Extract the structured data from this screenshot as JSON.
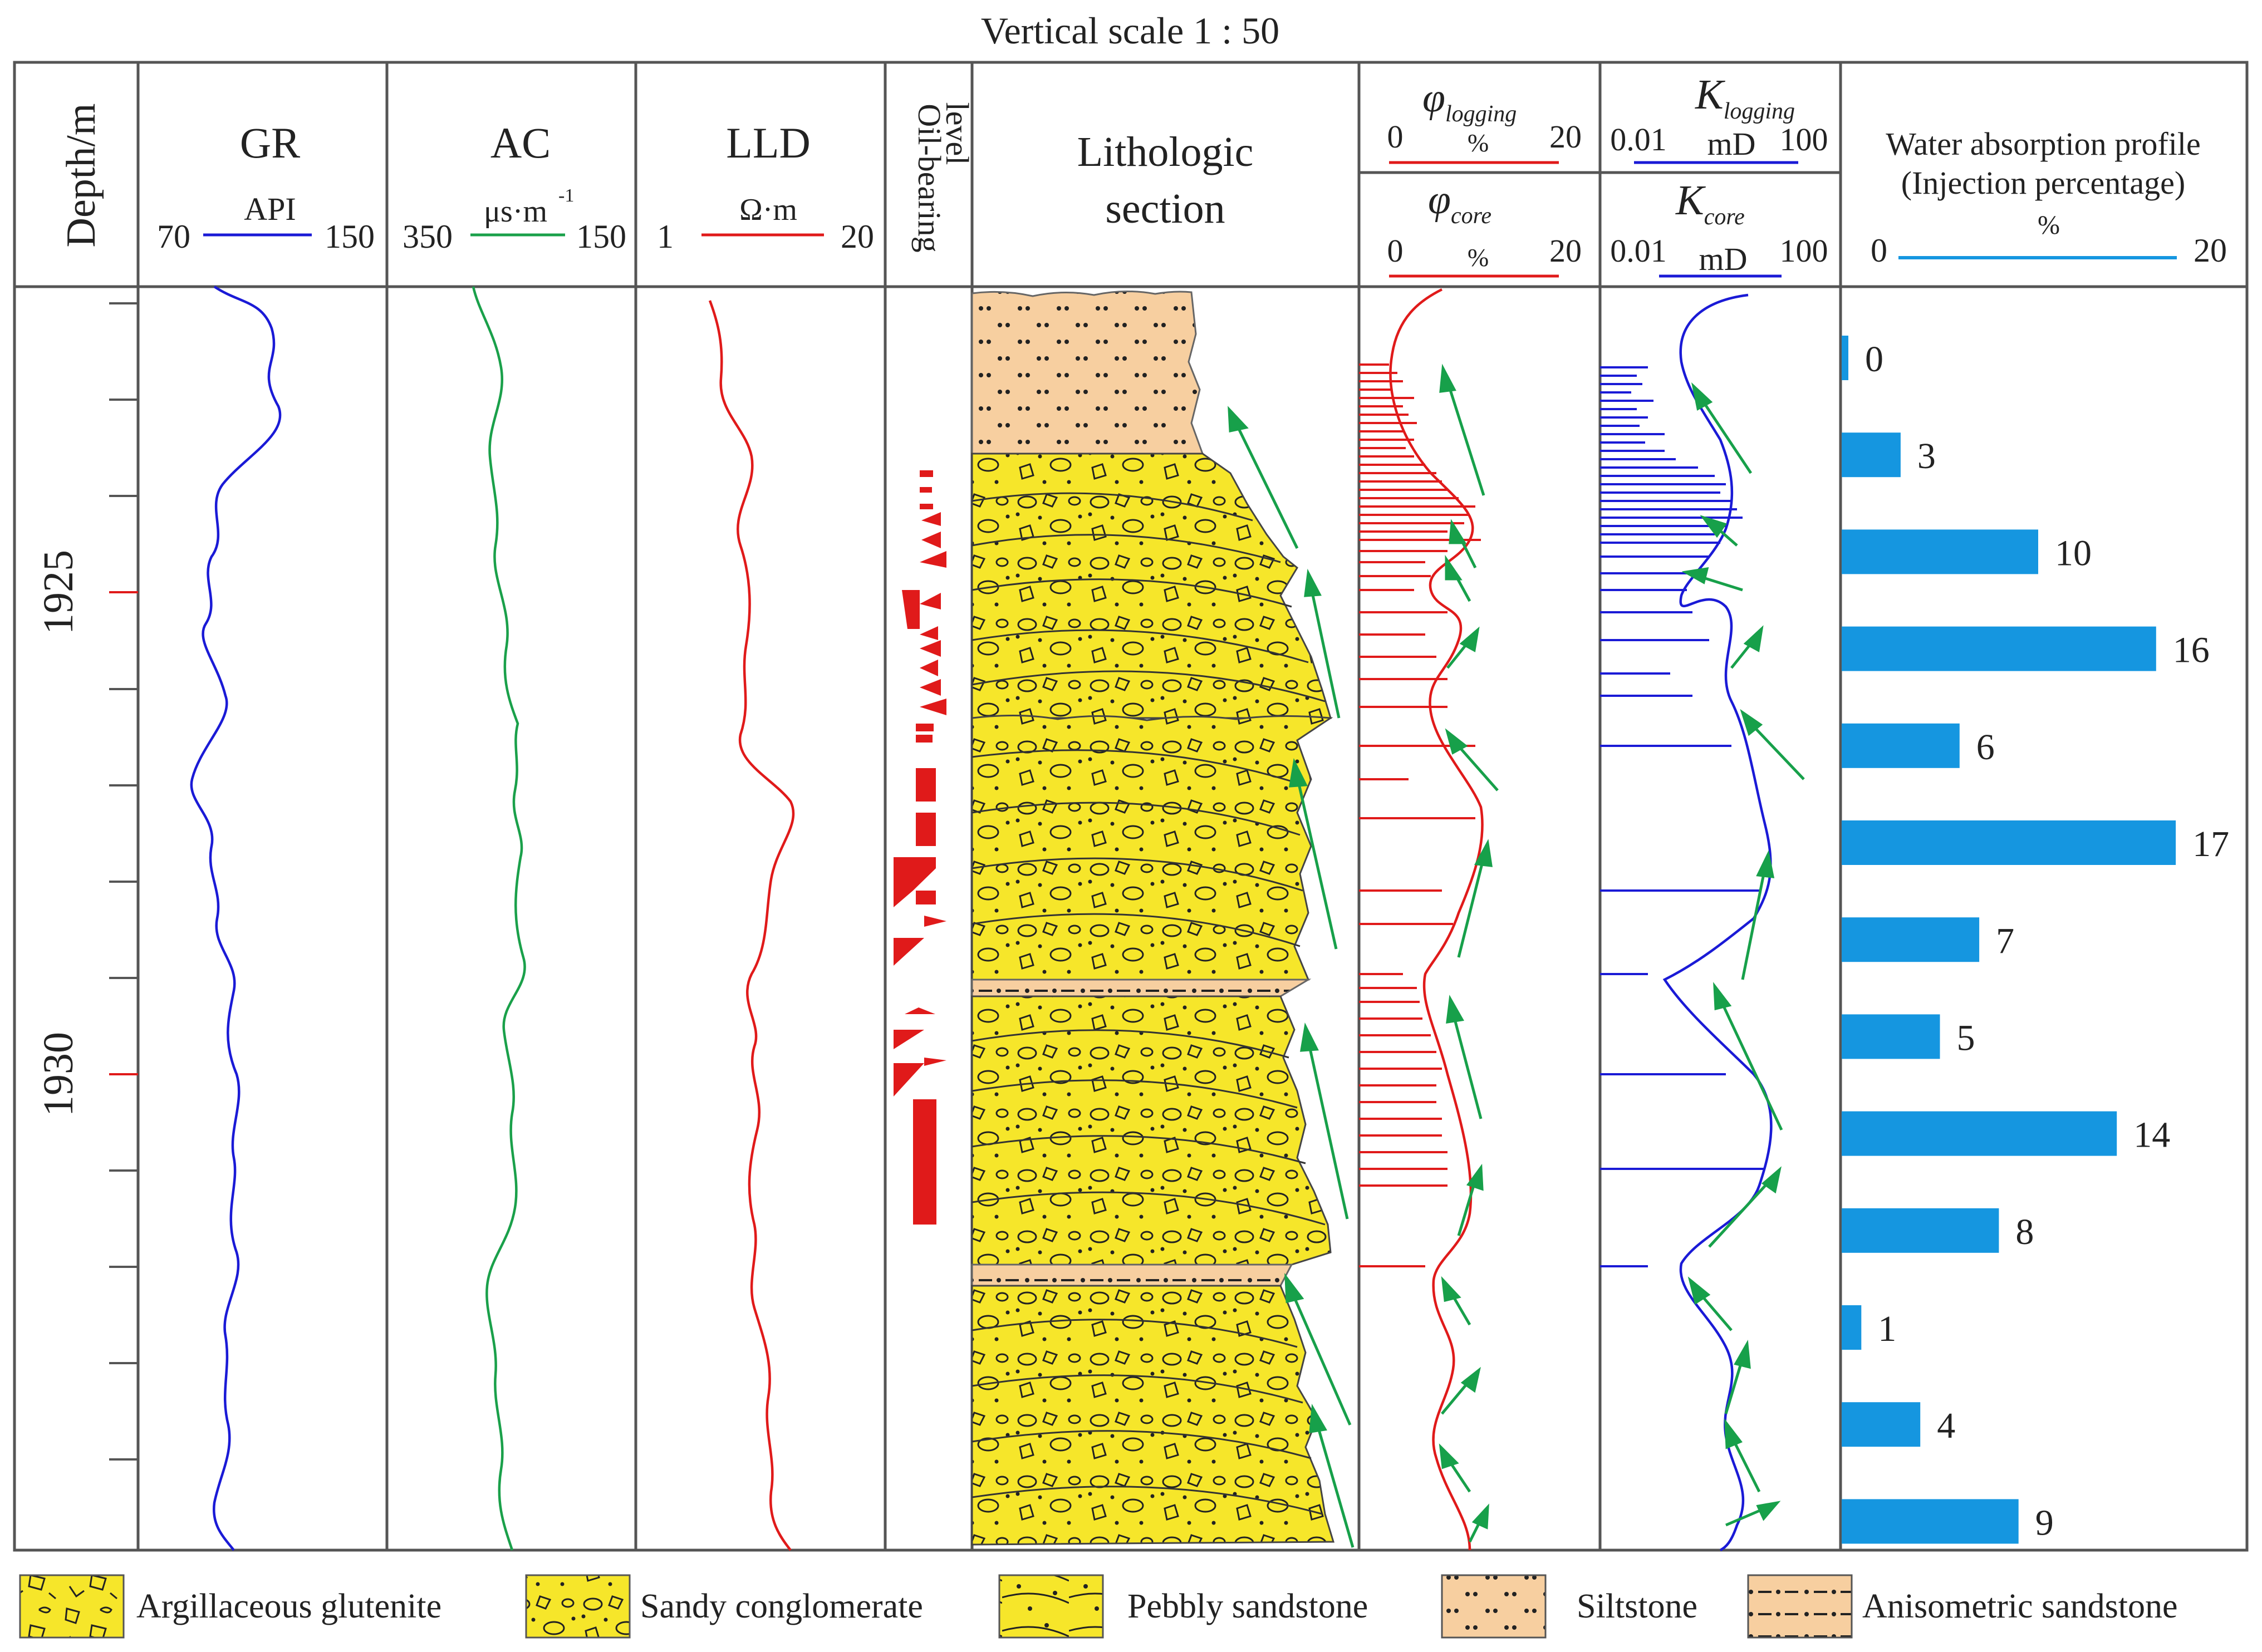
{
  "scale_label": "Vertical scale 1 : 50",
  "headers": {
    "depth": "Depth/m",
    "gr": {
      "name": "GR",
      "unit": "API",
      "min": "70",
      "max": "150"
    },
    "ac": {
      "name": "AC",
      "unit": "μs·m",
      "unit_sup": "-1",
      "min": "350",
      "max": "150"
    },
    "lld": {
      "name": "LLD",
      "unit": "Ω·m",
      "min": "1",
      "max": "20"
    },
    "oil": {
      "line1": "Oil-bearing",
      "line2": "level"
    },
    "litho": {
      "line1": "Lithologic",
      "line2": "section"
    },
    "phi_log": {
      "sym": "φ",
      "sub": "logging",
      "min": "0",
      "unit": "%",
      "max": "20"
    },
    "phi_core": {
      "sym": "φ",
      "sub": "core",
      "min": "0",
      "unit": "%",
      "max": "20"
    },
    "k_log": {
      "sym": "K",
      "sub": "logging",
      "min": "0.01",
      "unit": "mD",
      "max": "100"
    },
    "k_core": {
      "sym": "K",
      "sub": "core",
      "min": "0.01",
      "unit": "mD",
      "max": "100"
    },
    "water": {
      "line1": "Water absorption profile",
      "line2": "(Injection percentage)",
      "unit": "%",
      "min": "0",
      "max": "20"
    }
  },
  "depth_labels": [
    "1925",
    "1930"
  ],
  "colors": {
    "gr": "#1a1ad6",
    "ac": "#1aa04a",
    "lld": "#e01a1a",
    "phi": "#e01a1a",
    "k": "#1a1ad6",
    "bar": "#1596e0",
    "arrow": "#17a04a",
    "glutenite": "#f6e62a",
    "siltstone": "#f7cfa0"
  },
  "chart_data": {
    "type": "bar",
    "title": "Water absorption profile (Injection percentage)",
    "unit": "%",
    "xlim": [
      0,
      20
    ],
    "values": [
      0,
      3,
      10,
      16,
      6,
      17,
      7,
      5,
      14,
      8,
      1,
      4,
      9
    ],
    "labels": [
      "0",
      "3",
      "10",
      "16",
      "6",
      "17",
      "7",
      "5",
      "14",
      "8",
      "1",
      "4",
      "9"
    ]
  },
  "legend": [
    {
      "label": "Argillaceous glutenite",
      "pattern": "argillaceous"
    },
    {
      "label": "Sandy conglomerate",
      "pattern": "sandy"
    },
    {
      "label": "Pebbly sandstone",
      "pattern": "pebbly"
    },
    {
      "label": "Siltstone",
      "pattern": "silt"
    },
    {
      "label": "Anisometric sandstone",
      "pattern": "aniso"
    }
  ]
}
